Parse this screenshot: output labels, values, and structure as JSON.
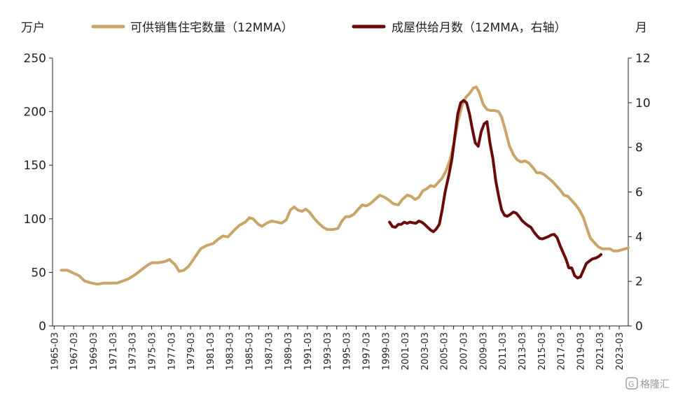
{
  "chart_data": {
    "type": "line",
    "left_axis_unit": "万户",
    "right_axis_unit": "月",
    "ylim_left": [
      0,
      250
    ],
    "yticks_left": [
      0,
      50,
      100,
      150,
      200,
      250
    ],
    "ylim_right": [
      0,
      12
    ],
    "yticks_right": [
      0,
      2,
      4,
      6,
      8,
      10,
      12
    ],
    "xlim": [
      1965.0,
      2024.1
    ],
    "x_tick_labels": [
      "1965-03",
      "1967-03",
      "1969-03",
      "1971-03",
      "1973-03",
      "1975-03",
      "1977-03",
      "1979-03",
      "1981-03",
      "1983-03",
      "1985-03",
      "1987-03",
      "1989-03",
      "1991-03",
      "1993-03",
      "1995-03",
      "1997-03",
      "1999-03",
      "2001-03",
      "2003-03",
      "2005-03",
      "2007-03",
      "2009-03",
      "2011-03",
      "2013-03",
      "2015-03",
      "2017-03",
      "2019-03",
      "2021-03",
      "2023-03"
    ],
    "legend_placement": "top",
    "grid": false,
    "series": [
      {
        "name": "可供销售住宅数量（12MMA）",
        "axis": "left",
        "color": "#C9A56A",
        "points": [
          [
            1965.9,
            52
          ],
          [
            1966.5,
            52
          ],
          [
            1967.0,
            50
          ],
          [
            1967.7,
            47
          ],
          [
            1968.3,
            42
          ],
          [
            1969.0,
            40
          ],
          [
            1969.6,
            39
          ],
          [
            1970.3,
            40
          ],
          [
            1971.0,
            40
          ],
          [
            1971.6,
            40
          ],
          [
            1972.2,
            42
          ],
          [
            1972.8,
            44
          ],
          [
            1973.5,
            48
          ],
          [
            1974.2,
            53
          ],
          [
            1974.8,
            57
          ],
          [
            1975.2,
            59
          ],
          [
            1975.8,
            59
          ],
          [
            1976.5,
            60
          ],
          [
            1977.0,
            62
          ],
          [
            1977.6,
            57
          ],
          [
            1978.0,
            51
          ],
          [
            1978.5,
            52
          ],
          [
            1979.0,
            56
          ],
          [
            1979.6,
            64
          ],
          [
            1980.2,
            72
          ],
          [
            1980.8,
            75
          ],
          [
            1981.5,
            77
          ],
          [
            1982.0,
            81
          ],
          [
            1982.5,
            84
          ],
          [
            1983.0,
            83
          ],
          [
            1983.6,
            89
          ],
          [
            1984.2,
            94
          ],
          [
            1984.8,
            97
          ],
          [
            1985.2,
            101
          ],
          [
            1985.6,
            100
          ],
          [
            1986.1,
            95
          ],
          [
            1986.5,
            93
          ],
          [
            1987.0,
            96
          ],
          [
            1987.5,
            98
          ],
          [
            1988.0,
            97
          ],
          [
            1988.5,
            96
          ],
          [
            1989.0,
            99
          ],
          [
            1989.4,
            108
          ],
          [
            1989.8,
            111
          ],
          [
            1990.2,
            108
          ],
          [
            1990.6,
            107
          ],
          [
            1991.0,
            109
          ],
          [
            1991.4,
            106
          ],
          [
            1991.8,
            101
          ],
          [
            1992.3,
            96
          ],
          [
            1992.8,
            92
          ],
          [
            1993.2,
            90
          ],
          [
            1993.8,
            90
          ],
          [
            1994.3,
            91
          ],
          [
            1994.7,
            98
          ],
          [
            1995.1,
            102
          ],
          [
            1995.5,
            102
          ],
          [
            1995.9,
            104
          ],
          [
            1996.3,
            108
          ],
          [
            1996.8,
            113
          ],
          [
            1997.2,
            112
          ],
          [
            1997.6,
            114
          ],
          [
            1998.1,
            118
          ],
          [
            1998.6,
            122
          ],
          [
            1999.1,
            120
          ],
          [
            1999.6,
            117
          ],
          [
            2000.0,
            114
          ],
          [
            2000.5,
            113
          ],
          [
            2000.9,
            118
          ],
          [
            2001.4,
            122
          ],
          [
            2001.8,
            121
          ],
          [
            2002.2,
            118
          ],
          [
            2002.6,
            120
          ],
          [
            2003.0,
            126
          ],
          [
            2003.4,
            128
          ],
          [
            2003.8,
            131
          ],
          [
            2004.2,
            130
          ],
          [
            2004.6,
            134
          ],
          [
            2005.0,
            138
          ],
          [
            2005.4,
            145
          ],
          [
            2005.8,
            155
          ],
          [
            2006.2,
            170
          ],
          [
            2006.6,
            190
          ],
          [
            2007.0,
            205
          ],
          [
            2007.4,
            213
          ],
          [
            2007.8,
            217
          ],
          [
            2008.2,
            222
          ],
          [
            2008.5,
            223
          ],
          [
            2008.8,
            218
          ],
          [
            2009.2,
            207
          ],
          [
            2009.6,
            202
          ],
          [
            2010.0,
            201
          ],
          [
            2010.4,
            201
          ],
          [
            2010.8,
            200
          ],
          [
            2011.1,
            195
          ],
          [
            2011.5,
            182
          ],
          [
            2011.9,
            168
          ],
          [
            2012.3,
            160
          ],
          [
            2012.7,
            155
          ],
          [
            2013.1,
            153
          ],
          [
            2013.5,
            154
          ],
          [
            2013.9,
            152
          ],
          [
            2014.3,
            148
          ],
          [
            2014.7,
            143
          ],
          [
            2015.1,
            143
          ],
          [
            2015.5,
            141
          ],
          [
            2015.9,
            138
          ],
          [
            2016.3,
            135
          ],
          [
            2016.7,
            131
          ],
          [
            2017.1,
            127
          ],
          [
            2017.5,
            122
          ],
          [
            2017.9,
            121
          ],
          [
            2018.3,
            117
          ],
          [
            2018.7,
            113
          ],
          [
            2019.1,
            108
          ],
          [
            2019.5,
            101
          ],
          [
            2019.9,
            90
          ],
          [
            2020.2,
            82
          ],
          [
            2020.6,
            78
          ],
          [
            2021.0,
            74
          ],
          [
            2021.4,
            72
          ],
          [
            2021.8,
            72
          ],
          [
            2022.2,
            72
          ],
          [
            2022.6,
            70
          ],
          [
            2023.0,
            70
          ],
          [
            2023.4,
            71
          ],
          [
            2023.8,
            72
          ],
          [
            2024.1,
            73
          ]
        ]
      },
      {
        "name": "成屋供给月数（12MMA，右轴）",
        "axis": "right",
        "color": "#6B0A0A",
        "points": [
          [
            1999.6,
            4.65
          ],
          [
            1999.9,
            4.45
          ],
          [
            2000.2,
            4.42
          ],
          [
            2000.5,
            4.55
          ],
          [
            2000.8,
            4.55
          ],
          [
            2001.1,
            4.65
          ],
          [
            2001.4,
            4.6
          ],
          [
            2001.7,
            4.65
          ],
          [
            2002.0,
            4.62
          ],
          [
            2002.3,
            4.6
          ],
          [
            2002.6,
            4.7
          ],
          [
            2002.9,
            4.65
          ],
          [
            2003.2,
            4.55
          ],
          [
            2003.5,
            4.42
          ],
          [
            2003.8,
            4.3
          ],
          [
            2004.1,
            4.22
          ],
          [
            2004.4,
            4.35
          ],
          [
            2004.7,
            4.55
          ],
          [
            2005.0,
            5.2
          ],
          [
            2005.3,
            6.0
          ],
          [
            2005.7,
            6.8
          ],
          [
            2006.0,
            7.5
          ],
          [
            2006.3,
            8.5
          ],
          [
            2006.6,
            9.5
          ],
          [
            2006.9,
            10.0
          ],
          [
            2007.2,
            10.1
          ],
          [
            2007.5,
            10.0
          ],
          [
            2007.8,
            9.5
          ],
          [
            2008.1,
            8.8
          ],
          [
            2008.4,
            8.2
          ],
          [
            2008.7,
            8.05
          ],
          [
            2009.0,
            8.7
          ],
          [
            2009.3,
            9.05
          ],
          [
            2009.6,
            9.15
          ],
          [
            2009.9,
            8.2
          ],
          [
            2010.2,
            7.5
          ],
          [
            2010.5,
            6.5
          ],
          [
            2010.8,
            5.8
          ],
          [
            2011.1,
            5.2
          ],
          [
            2011.4,
            4.95
          ],
          [
            2011.7,
            4.92
          ],
          [
            2012.0,
            5.0
          ],
          [
            2012.3,
            5.1
          ],
          [
            2012.6,
            5.05
          ],
          [
            2012.9,
            4.9
          ],
          [
            2013.2,
            4.72
          ],
          [
            2013.5,
            4.6
          ],
          [
            2013.8,
            4.5
          ],
          [
            2014.1,
            4.42
          ],
          [
            2014.4,
            4.22
          ],
          [
            2014.7,
            4.05
          ],
          [
            2015.0,
            3.92
          ],
          [
            2015.3,
            3.9
          ],
          [
            2015.6,
            3.95
          ],
          [
            2015.9,
            4.0
          ],
          [
            2016.2,
            4.08
          ],
          [
            2016.5,
            4.1
          ],
          [
            2016.8,
            3.95
          ],
          [
            2017.1,
            3.6
          ],
          [
            2017.4,
            3.3
          ],
          [
            2017.7,
            3.0
          ],
          [
            2018.0,
            2.6
          ],
          [
            2018.3,
            2.6
          ],
          [
            2018.6,
            2.25
          ],
          [
            2018.9,
            2.15
          ],
          [
            2019.2,
            2.2
          ],
          [
            2019.5,
            2.5
          ],
          [
            2019.8,
            2.8
          ],
          [
            2020.1,
            2.9
          ],
          [
            2020.4,
            3.0
          ],
          [
            2020.8,
            3.05
          ],
          [
            2021.1,
            3.12
          ],
          [
            2021.3,
            3.2
          ]
        ]
      }
    ]
  },
  "watermark": {
    "text": "格隆汇",
    "logo": "G"
  }
}
